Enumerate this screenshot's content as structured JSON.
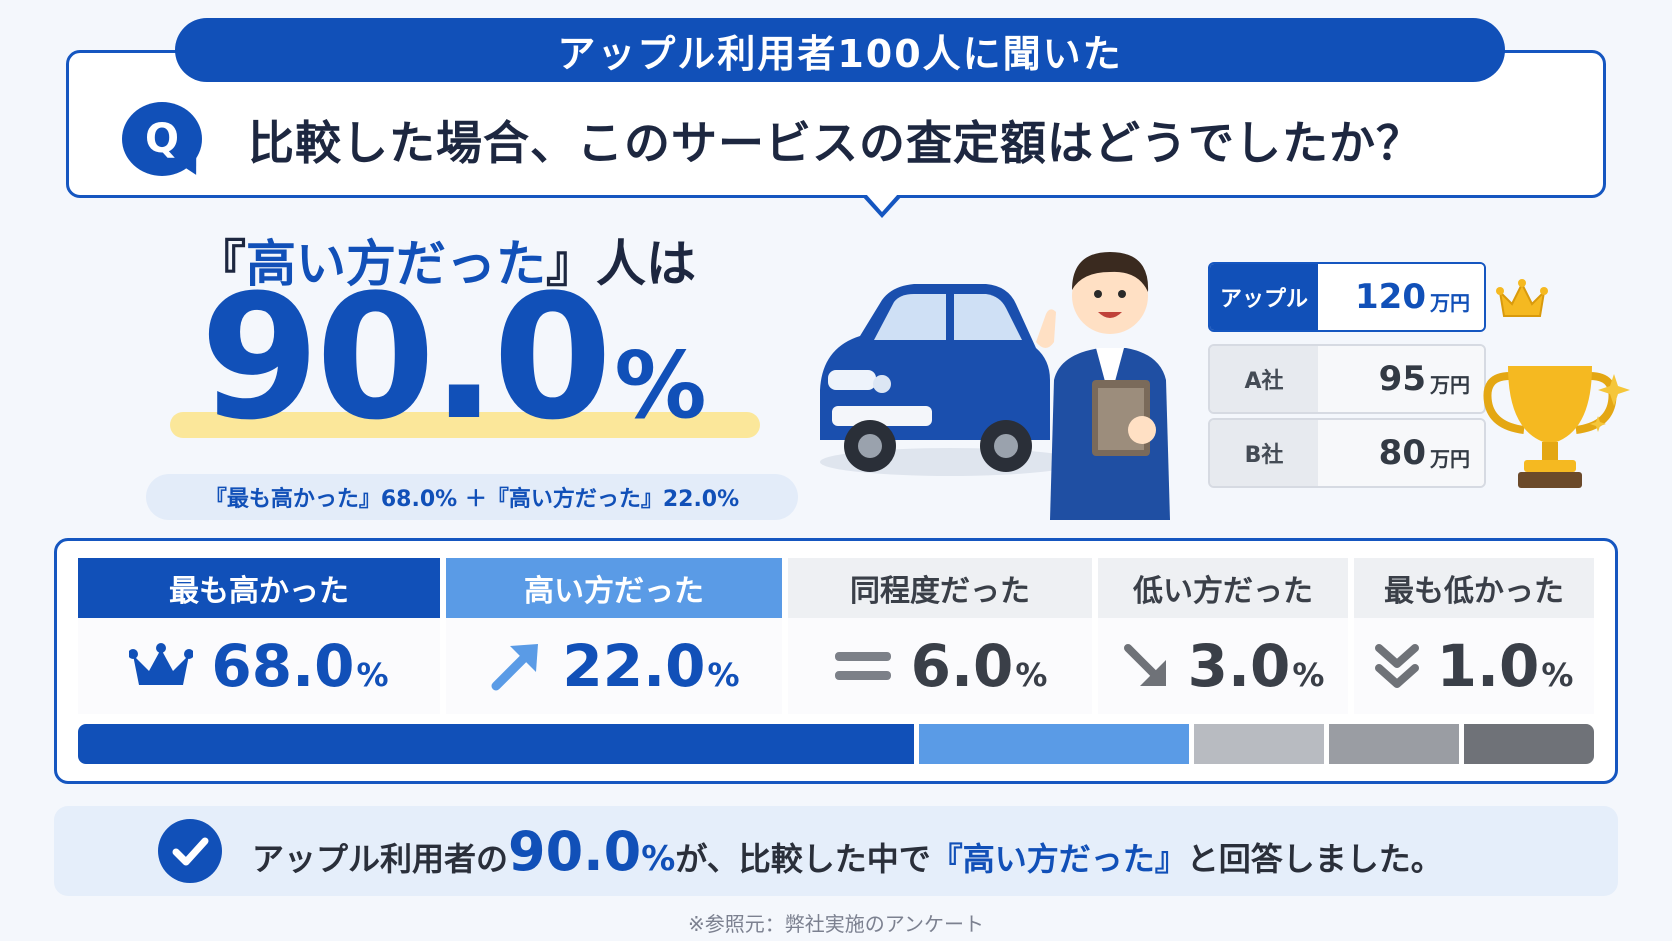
{
  "header": {
    "banner": "アップル利用者100人に聞いた",
    "q_badge": "Q",
    "question": "比較した場合、このサービスの査定額はどうでしたか？"
  },
  "headline": {
    "label_prefix": "『",
    "label_accent": "高い方だった",
    "label_suffix": "』人は",
    "value": "90.0",
    "unit": "%",
    "breakdown": "『最も高かった』68.0% ＋『高い方だった』22.0%"
  },
  "price_table": {
    "unit": "万円",
    "rows": [
      {
        "name": "アップル",
        "amount": "120"
      },
      {
        "name": "A社",
        "amount": "95"
      },
      {
        "name": "B社",
        "amount": "80"
      }
    ]
  },
  "results": [
    {
      "label": "最も高かった",
      "value": "68.0",
      "unit": "%",
      "icon": "crown-icon",
      "share": 68.0,
      "color": "#1150b8"
    },
    {
      "label": "高い方だった",
      "value": "22.0",
      "unit": "%",
      "icon": "arrow-up-right-icon",
      "share": 22.0,
      "color": "#5a9be6"
    },
    {
      "label": "同程度だった",
      "value": "6.0",
      "unit": "%",
      "icon": "equals-icon",
      "share": 6.0,
      "color": "#b8bbc1"
    },
    {
      "label": "低い方だった",
      "value": "3.0",
      "unit": "%",
      "icon": "arrow-down-right-icon",
      "share": 3.0,
      "color": "#9a9da3"
    },
    {
      "label": "最も低かった",
      "value": "1.0",
      "unit": "%",
      "icon": "double-chevron-down-icon",
      "share": 1.0,
      "color": "#6f7278"
    }
  ],
  "conclusion": {
    "prefix": "アップル利用者の",
    "value": "90.0",
    "unit": "%",
    "middle": "が、比較した中で",
    "emphasis": "『高い方だった』",
    "suffix": "と回答しました。"
  },
  "source": "※参照元：弊社実施のアンケート",
  "colors": {
    "primary": "#1150b8",
    "secondary": "#5a9be6",
    "highlight": "#fbe79a"
  }
}
